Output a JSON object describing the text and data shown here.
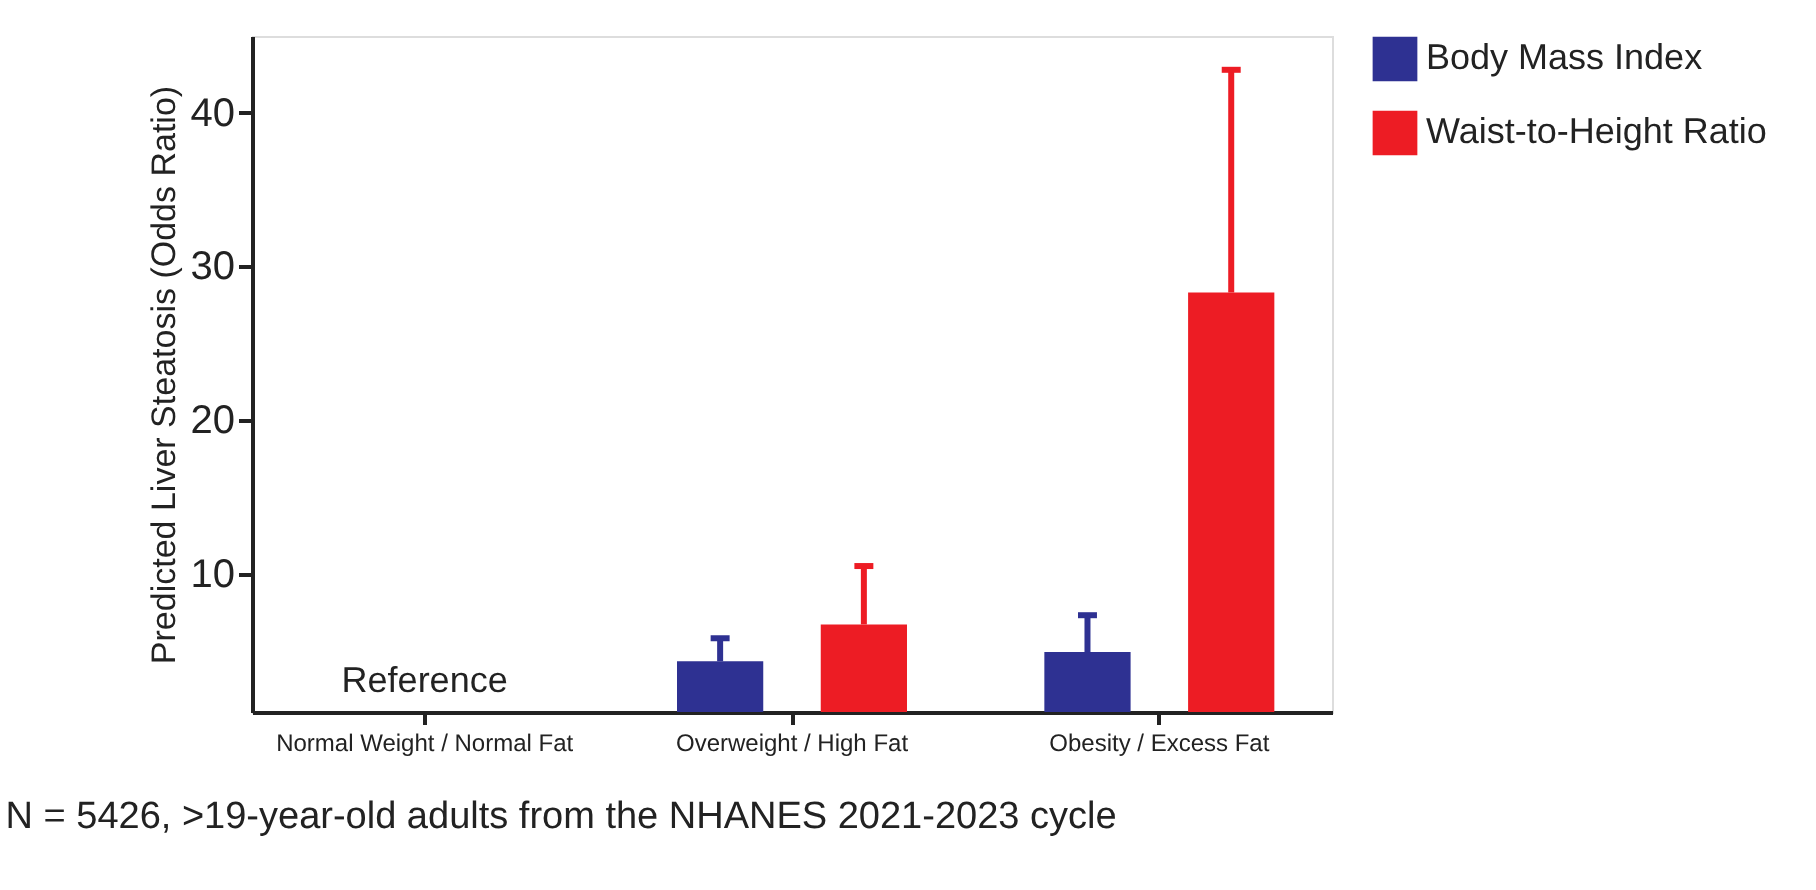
{
  "chart_data": {
    "type": "bar",
    "ylabel": "Predicted Liver Steatosis (Odds Ratio)",
    "categories": [
      "Normal Weight / Normal Fat",
      "Overweight / High Fat",
      "Obesity / Excess Fat"
    ],
    "series": [
      {
        "name": "Body Mass Index",
        "color": "#2e3192",
        "values": [
          null,
          4.3,
          4.9
        ],
        "errors": [
          null,
          [
            4.3,
            5.8
          ],
          [
            4.9,
            7.3
          ]
        ]
      },
      {
        "name": "Waist-to-Height Ratio",
        "color": "#ed1c24",
        "values": [
          null,
          6.7,
          28.3
        ],
        "errors": [
          null,
          [
            6.7,
            10.5
          ],
          [
            28.3,
            42.8
          ]
        ]
      }
    ],
    "ylim": [
      1,
      45
    ],
    "yticks": [
      10,
      20,
      30,
      40
    ],
    "grid": false,
    "legend": "top right",
    "annotations": [
      "Reference",
      "N = 5426, >19-year-old adults from the NHANES 2021-2023 cycle"
    ]
  }
}
